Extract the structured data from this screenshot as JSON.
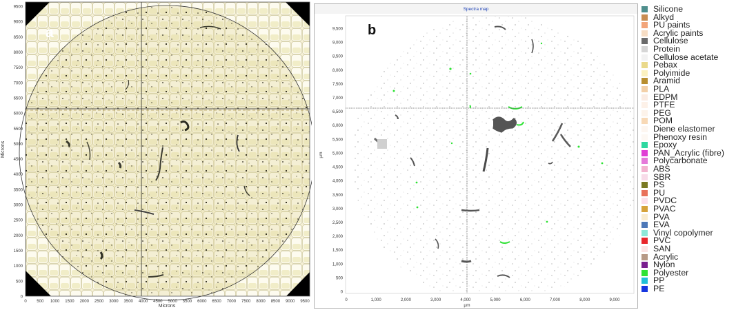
{
  "panel_a": {
    "letter": "a",
    "y_axis_label": "Microns",
    "x_axis_label": "Microns",
    "y_ticks": [
      "9500",
      "9000",
      "8500",
      "8000",
      "7500",
      "7000",
      "6500",
      "6000",
      "5500",
      "5000",
      "4500",
      "4000",
      "3500",
      "3000",
      "2500",
      "2000",
      "1500",
      "1000",
      "500",
      "0"
    ],
    "x_ticks": [
      "0",
      "500",
      "1000",
      "1500",
      "2000",
      "2500",
      "3000",
      "3500",
      "4000",
      "4500",
      "5000",
      "5500",
      "6000",
      "6500",
      "7000",
      "7500",
      "8000",
      "8500",
      "9000",
      "9500"
    ]
  },
  "panel_b": {
    "letter": "b",
    "window_title": "Spectra map",
    "y_axis_label": "µm",
    "x_axis_label": "µm",
    "y_ticks": [
      "9,500",
      "9,000",
      "8,500",
      "8,000",
      "7,500",
      "7,000",
      "6,500",
      "6,000",
      "5,500",
      "5,000",
      "4,500",
      "4,000",
      "3,500",
      "3,000",
      "2,500",
      "2,000",
      "1,500",
      "1,000",
      "500",
      "0"
    ],
    "x_ticks": [
      "0",
      "1,000",
      "2,000",
      "3,000",
      "4,000",
      "5,000",
      "6,000",
      "7,000",
      "8,000",
      "9,000"
    ]
  },
  "legend": [
    {
      "label": "Silicone",
      "color": "#4f8f8d"
    },
    {
      "label": "Alkyd",
      "color": "#c98d52"
    },
    {
      "label": "PU paints",
      "color": "#f2a57a"
    },
    {
      "label": "Acrylic paints",
      "color": "#f7ddc4"
    },
    {
      "label": "Cellulose",
      "color": "#6b6b6b"
    },
    {
      "label": "Protein",
      "color": "#d6d6d6"
    },
    {
      "label": "Cellulose acetate",
      "color": "#f2f2f2"
    },
    {
      "label": "Pebax",
      "color": "#ead98a"
    },
    {
      "label": "Polyimide",
      "color": "#fbf1bf"
    },
    {
      "label": "Aramid",
      "color": "#b88e2f"
    },
    {
      "label": "PLA",
      "color": "#f3d0a8"
    },
    {
      "label": "EDPM",
      "color": "#fbece3"
    },
    {
      "label": "PTFE",
      "color": "#fdf1e8"
    },
    {
      "label": "PEG",
      "color": "#fdf3ea"
    },
    {
      "label": "POM",
      "color": "#f8d9b6"
    },
    {
      "label": "Diene elastomer",
      "color": "#fdf6f0"
    },
    {
      "label": "Phenoxy resin",
      "color": "#fdf8f3"
    },
    {
      "label": "Epoxy",
      "color": "#2fd8a0"
    },
    {
      "label": "PAN_Acrylic (fibre)",
      "color": "#e03fd5"
    },
    {
      "label": "Polycarbonate",
      "color": "#e57ad9"
    },
    {
      "label": "ABS",
      "color": "#f3b4cf"
    },
    {
      "label": "SBR",
      "color": "#f8dbe8"
    },
    {
      "label": "PS",
      "color": "#7a7a24"
    },
    {
      "label": "PU",
      "color": "#e8705a"
    },
    {
      "label": "PVDC",
      "color": "#fbe0ea"
    },
    {
      "label": "PVAC",
      "color": "#d6a33a"
    },
    {
      "label": "PVA",
      "color": "#f9ecd0"
    },
    {
      "label": "EVA",
      "color": "#4d78b8"
    },
    {
      "label": "Vinyl copolymer",
      "color": "#8ee8d8"
    },
    {
      "label": "PVC",
      "color": "#e8262b"
    },
    {
      "label": "SAN",
      "color": "#fbe4e4"
    },
    {
      "label": "Acrylic",
      "color": "#b79a86"
    },
    {
      "label": "Nylon",
      "color": "#7a1f8f"
    },
    {
      "label": "Polyester",
      "color": "#2ee234"
    },
    {
      "label": "PP",
      "color": "#21c0d8"
    },
    {
      "label": "PE",
      "color": "#1736e0"
    }
  ]
}
